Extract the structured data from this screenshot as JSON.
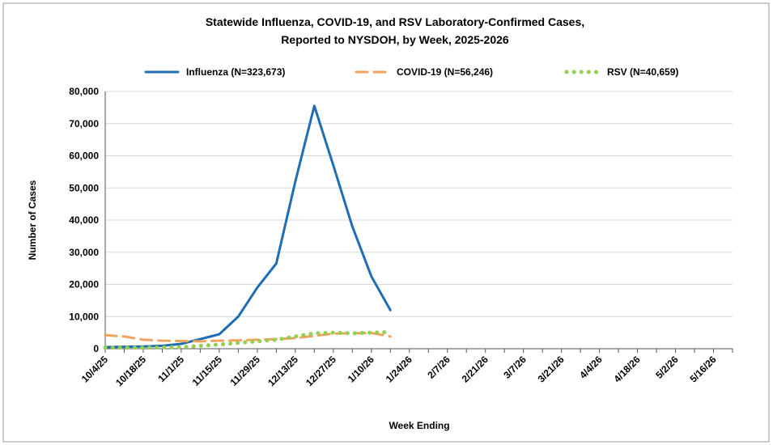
{
  "chart_data": {
    "type": "line",
    "title": "Statewide Influenza, COVID-19, and RSV Laboratory-Confirmed  Cases,",
    "subtitle": "Reported to NYSDOH, by Week, 2025-2026",
    "x_label": "Week Ending",
    "y_label": "Number of Cases",
    "categories": [
      "10/4/25",
      null,
      "10/18/25",
      null,
      "11/1/25",
      null,
      "11/15/25",
      null,
      "11/29/25",
      null,
      "12/13/25",
      null,
      "12/27/25",
      null,
      "1/10/26",
      null,
      "1/24/26",
      null,
      "2/7/26",
      null,
      "2/21/26",
      null,
      "3/7/26",
      null,
      "3/21/26",
      null,
      "4/4/26",
      null,
      "4/18/26",
      null,
      "5/2/26",
      null,
      "5/16/26",
      null
    ],
    "series": [
      {
        "name": "Influenza (N=323,673)",
        "color": "#1f6db5",
        "dash": "solid",
        "values": [
          500,
          600,
          700,
          900,
          1500,
          3000,
          4500,
          10000,
          19000,
          26500,
          52000,
          75500,
          57000,
          38000,
          22500,
          12000,
          null,
          null,
          null,
          null,
          null,
          null,
          null,
          null,
          null,
          null,
          null,
          null,
          null,
          null,
          null,
          null,
          null,
          null
        ]
      },
      {
        "name": "COVID-19 (N=56,246)",
        "color": "#f0a35e",
        "dash": "dashed",
        "values": [
          4200,
          3800,
          2800,
          2500,
          2400,
          2300,
          2500,
          2600,
          2800,
          3000,
          3300,
          4000,
          4700,
          4800,
          4900,
          3800,
          null,
          null,
          null,
          null,
          null,
          null,
          null,
          null,
          null,
          null,
          null,
          null,
          null,
          null,
          null,
          null,
          null,
          null
        ]
      },
      {
        "name": "RSV (N=40,659)",
        "color": "#92d050",
        "dash": "dotted",
        "values": [
          300,
          300,
          300,
          400,
          500,
          900,
          1300,
          1800,
          2300,
          2800,
          3800,
          4800,
          5000,
          4800,
          5000,
          5200,
          null,
          null,
          null,
          null,
          null,
          null,
          null,
          null,
          null,
          null,
          null,
          null,
          null,
          null,
          null,
          null,
          null,
          null
        ]
      }
    ],
    "ylim": [
      0,
      80000
    ],
    "yticks": [
      {
        "value": 0,
        "label": "0"
      },
      {
        "value": 10000,
        "label": "10,000"
      },
      {
        "value": 20000,
        "label": "20,000"
      },
      {
        "value": 30000,
        "label": "30,000"
      },
      {
        "value": 40000,
        "label": "40,000"
      },
      {
        "value": 50000,
        "label": "50,000"
      },
      {
        "value": 60000,
        "label": "60,000"
      },
      {
        "value": 70000,
        "label": "70,000"
      },
      {
        "value": 80000,
        "label": "80,000"
      }
    ],
    "grid": true,
    "legend": "top"
  }
}
